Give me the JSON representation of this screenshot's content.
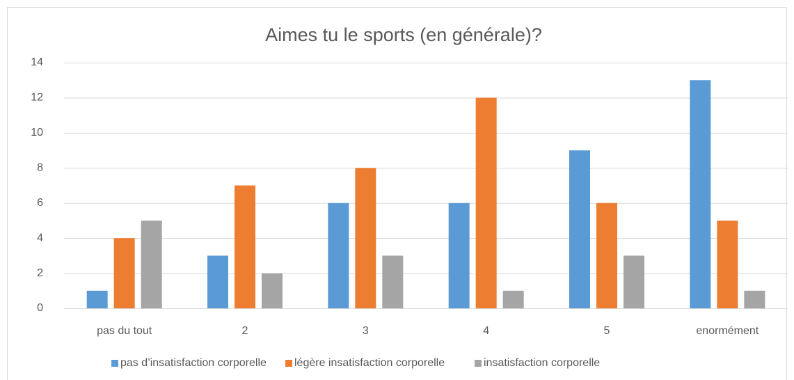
{
  "chart_data": {
    "type": "bar",
    "title": "Aimes tu le sports (en générale)?",
    "categories": [
      "pas du tout",
      "2",
      "3",
      "4",
      "5",
      "enormément"
    ],
    "series": [
      {
        "name": "pas d’insatisfaction corporelle",
        "color": "#5b9bd5",
        "values": [
          1,
          3,
          6,
          6,
          9,
          13
        ]
      },
      {
        "name": "légère insatisfaction corporelle",
        "color": "#ed7d31",
        "values": [
          4,
          7,
          8,
          12,
          6,
          5
        ]
      },
      {
        "name": "insatisfaction corporelle",
        "color": "#a5a5a5",
        "values": [
          5,
          2,
          3,
          1,
          3,
          1
        ]
      }
    ],
    "ylim": [
      0,
      14
    ],
    "yticks": [
      0,
      2,
      4,
      6,
      8,
      10,
      12,
      14
    ],
    "grid": true,
    "legend": "bottom"
  }
}
